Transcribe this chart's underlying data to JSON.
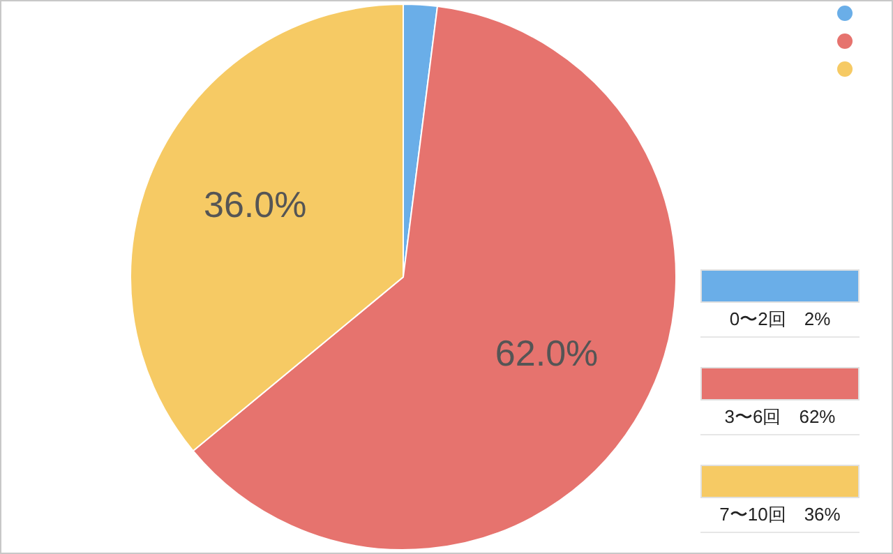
{
  "chart_data": {
    "type": "pie",
    "categories": [
      "0〜2回",
      "3〜6回",
      "7〜10回"
    ],
    "values": [
      2,
      62,
      36
    ],
    "colors": [
      "#6aaee8",
      "#e6736e",
      "#f6ca64"
    ],
    "value_labels": [
      null,
      "62.0%",
      "36.0%"
    ],
    "annotations": [
      "2%",
      "62%",
      "36%"
    ]
  }
}
